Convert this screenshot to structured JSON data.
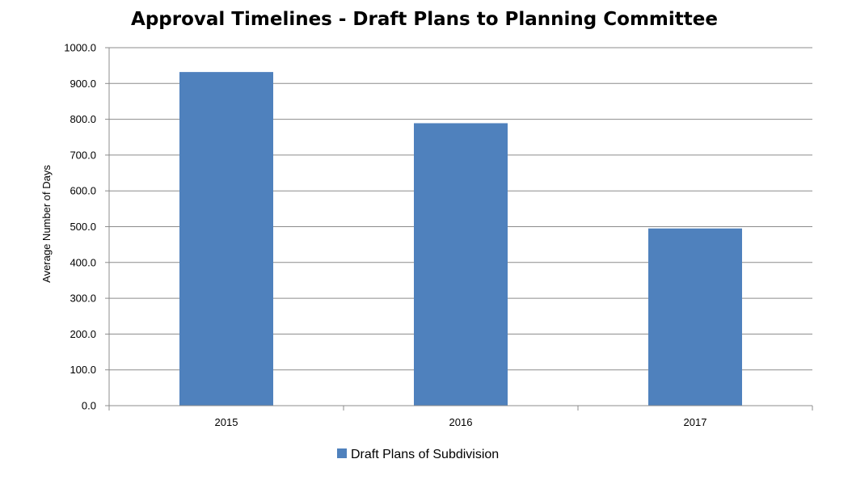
{
  "chart_data": {
    "type": "bar",
    "title": "Approval Timelines - Draft Plans to Planning Committee",
    "xlabel": "",
    "ylabel": "Average Number of Days",
    "categories": [
      "2015",
      "2016",
      "2017"
    ],
    "series": [
      {
        "name": "Draft Plans of Subdivision",
        "values": [
          932,
          789,
          495
        ],
        "color": "#4f81bd"
      }
    ],
    "ylim": [
      0,
      1000
    ],
    "yticks": [
      "0.0",
      "100.0",
      "200.0",
      "300.0",
      "400.0",
      "500.0",
      "600.0",
      "700.0",
      "800.0",
      "900.0",
      "1000.0"
    ],
    "grid": true,
    "legend_position": "bottom"
  }
}
